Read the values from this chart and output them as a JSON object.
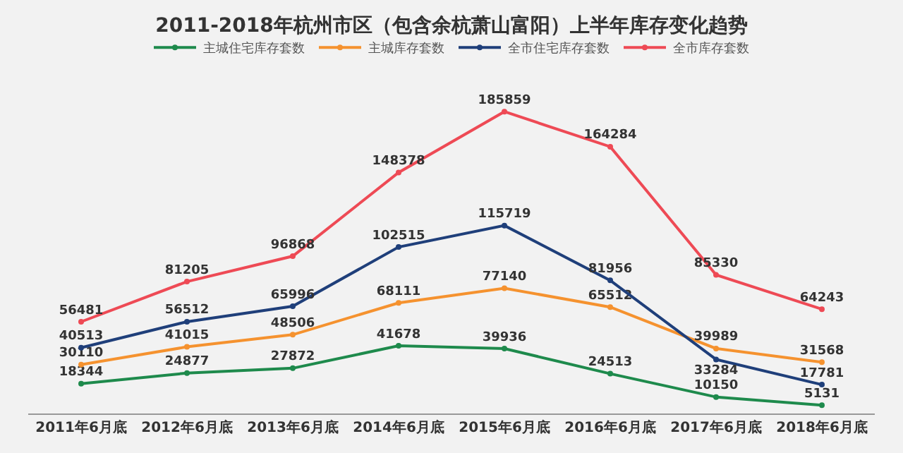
{
  "chart_data": {
    "type": "line",
    "title": "2011-2018年杭州市区（包含余杭萧山富阳）上半年库存变化趋势",
    "categories": [
      "2011年6月底",
      "2012年6月底",
      "2013年6月底",
      "2014年6月底",
      "2015年6月底",
      "2016年6月底",
      "2017年6月底",
      "2018年6月底"
    ],
    "series": [
      {
        "name": "主城住宅库存套数",
        "color": "#1e8a4c",
        "values": [
          18344,
          24877,
          27872,
          41678,
          39936,
          24513,
          10150,
          5131
        ]
      },
      {
        "name": "主城库存套数",
        "color": "#f5922f",
        "values": [
          30110,
          41015,
          48506,
          68111,
          77140,
          65512,
          39989,
          31568
        ]
      },
      {
        "name": "全市住宅库存套数",
        "color": "#1f3f7a",
        "values": [
          40513,
          56512,
          65996,
          102515,
          115719,
          81956,
          33284,
          17781
        ]
      },
      {
        "name": "全市库存套数",
        "color": "#ee4a55",
        "values": [
          56481,
          81205,
          96868,
          148378,
          185859,
          164284,
          85330,
          64243
        ]
      }
    ],
    "data_labels": true,
    "marker": "circle",
    "line_style": "solid",
    "legend": "top",
    "grid": false,
    "tick_labels": "x"
  }
}
